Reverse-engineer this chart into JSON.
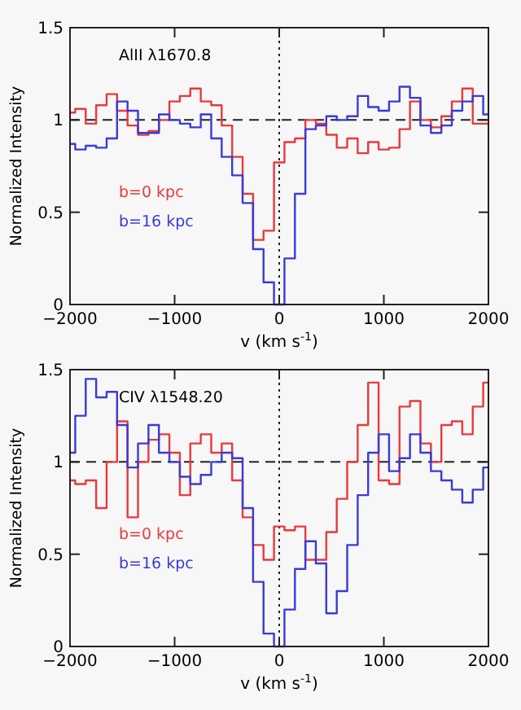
{
  "chart_data": [
    {
      "type": "step",
      "title": "AlII λ1670.8",
      "xlabel": "v (km s$^{-1}$)",
      "ylabel": "Normalized Intensity",
      "x": [
        -2000,
        -1900,
        -1800,
        -1700,
        -1600,
        -1500,
        -1400,
        -1300,
        -1200,
        -1100,
        -1000,
        -900,
        -800,
        -700,
        -600,
        -500,
        -400,
        -300,
        -200,
        -100,
        0,
        100,
        200,
        300,
        400,
        500,
        600,
        700,
        800,
        900,
        1000,
        1100,
        1200,
        1300,
        1400,
        1500,
        1600,
        1700,
        1800,
        1900,
        2000
      ],
      "series": [
        {
          "name": "b=0 kpc",
          "color": "#e8393c",
          "values": [
            1.04,
            1.06,
            0.98,
            1.08,
            1.14,
            1.05,
            0.97,
            0.92,
            0.94,
            1.0,
            1.1,
            1.13,
            1.17,
            1.1,
            1.08,
            0.97,
            0.8,
            0.6,
            0.35,
            0.4,
            0.77,
            0.88,
            0.9,
            1.0,
            0.98,
            0.92,
            0.85,
            0.9,
            0.82,
            0.88,
            0.84,
            0.85,
            0.95,
            1.1,
            1.0,
            0.96,
            1.02,
            1.1,
            1.17,
            0.98,
            0.98
          ]
        },
        {
          "name": "b=16 kpc",
          "color": "#3a3ad8",
          "values": [
            0.87,
            0.84,
            0.86,
            0.85,
            0.9,
            1.1,
            1.05,
            0.93,
            0.93,
            1.03,
            1.0,
            0.98,
            0.96,
            1.03,
            0.9,
            0.8,
            0.7,
            0.55,
            0.3,
            0.12,
            0.0,
            0.25,
            0.6,
            0.95,
            0.97,
            1.02,
            1.0,
            1.02,
            1.13,
            1.07,
            1.05,
            1.1,
            1.18,
            1.12,
            0.97,
            0.93,
            0.97,
            1.05,
            1.1,
            1.13,
            1.03
          ]
        }
      ],
      "xlim": [
        -2000,
        2000
      ],
      "ylim": [
        0,
        1.5
      ],
      "xticks": [
        -2000,
        -1000,
        0,
        1000,
        2000
      ],
      "yticks": [
        0,
        0.5,
        1,
        1.5
      ],
      "ref_lines": [
        {
          "axis": "y",
          "value": 1,
          "line_style": "dashed",
          "color": "#222222"
        },
        {
          "axis": "x",
          "value": 0,
          "line_style": "dotted",
          "color": "#222222"
        }
      ],
      "legend": "left",
      "grid": false
    },
    {
      "type": "step",
      "title": "CIV λ1548.20",
      "xlabel": "v (km s$^{-1}$)",
      "ylabel": "Normalized Intensity",
      "x": [
        -2000,
        -1900,
        -1800,
        -1700,
        -1600,
        -1500,
        -1400,
        -1300,
        -1200,
        -1100,
        -1000,
        -900,
        -800,
        -700,
        -600,
        -500,
        -400,
        -300,
        -200,
        -100,
        0,
        100,
        200,
        300,
        400,
        500,
        600,
        700,
        800,
        900,
        1000,
        1100,
        1200,
        1300,
        1400,
        1500,
        1600,
        1700,
        1800,
        1900,
        2000
      ],
      "series": [
        {
          "name": "b=0 kpc",
          "color": "#e8393c",
          "values": [
            0.9,
            0.88,
            0.9,
            0.75,
            1.0,
            1.22,
            0.7,
            1.0,
            1.12,
            1.15,
            1.05,
            0.82,
            1.1,
            1.15,
            1.05,
            1.1,
            0.9,
            0.7,
            0.55,
            0.47,
            0.65,
            0.63,
            0.65,
            0.47,
            0.47,
            0.62,
            0.8,
            1.0,
            1.2,
            1.43,
            0.9,
            0.88,
            1.3,
            1.33,
            1.1,
            1.0,
            1.2,
            1.22,
            1.15,
            1.3,
            1.43
          ]
        },
        {
          "name": "b=16 kpc",
          "color": "#3a3ad8",
          "values": [
            1.05,
            1.25,
            1.45,
            1.35,
            1.38,
            1.2,
            0.97,
            1.1,
            1.2,
            1.05,
            1.0,
            0.92,
            0.88,
            0.93,
            1.0,
            1.05,
            1.02,
            0.75,
            0.35,
            0.07,
            0.0,
            0.2,
            0.42,
            0.57,
            0.45,
            0.18,
            0.3,
            0.55,
            0.82,
            1.05,
            1.15,
            0.95,
            1.02,
            1.15,
            1.05,
            0.95,
            0.9,
            0.85,
            0.78,
            0.85,
            0.97
          ]
        }
      ],
      "xlim": [
        -2000,
        2000
      ],
      "ylim": [
        0,
        1.5
      ],
      "xticks": [
        -2000,
        -1000,
        0,
        1000,
        2000
      ],
      "yticks": [
        0,
        0.5,
        1,
        1.5
      ],
      "ref_lines": [
        {
          "axis": "y",
          "value": 1,
          "line_style": "dashed",
          "color": "#222222"
        },
        {
          "axis": "x",
          "value": 0,
          "line_style": "dotted",
          "color": "#222222"
        }
      ],
      "legend": "left",
      "grid": false
    }
  ]
}
